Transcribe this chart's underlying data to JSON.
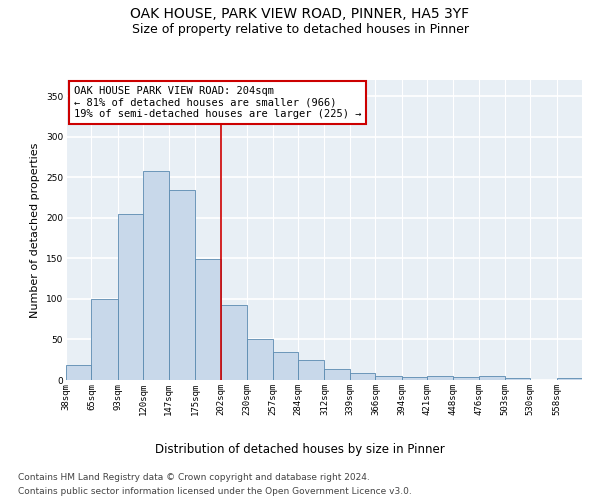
{
  "title": "OAK HOUSE, PARK VIEW ROAD, PINNER, HA5 3YF",
  "subtitle": "Size of property relative to detached houses in Pinner",
  "xlabel": "Distribution of detached houses by size in Pinner",
  "ylabel": "Number of detached properties",
  "footnote1": "Contains HM Land Registry data © Crown copyright and database right 2024.",
  "footnote2": "Contains public sector information licensed under the Open Government Licence v3.0.",
  "bar_color": "#c8d8ea",
  "bar_edge_color": "#5a8ab0",
  "vline_x": 202,
  "vline_color": "#cc0000",
  "annotation_title": "OAK HOUSE PARK VIEW ROAD: 204sqm",
  "annotation_line1": "← 81% of detached houses are smaller (966)",
  "annotation_line2": "19% of semi-detached houses are larger (225) →",
  "annotation_box_edgecolor": "#cc0000",
  "bin_edges": [
    38,
    65,
    93,
    120,
    147,
    175,
    202,
    230,
    257,
    284,
    312,
    339,
    366,
    394,
    421,
    448,
    476,
    503,
    530,
    558,
    585
  ],
  "bin_heights": [
    18,
    100,
    205,
    258,
    234,
    149,
    93,
    51,
    35,
    25,
    13,
    9,
    5,
    4,
    5,
    4,
    5,
    2,
    0,
    2
  ],
  "ylim": [
    0,
    370
  ],
  "yticks": [
    0,
    50,
    100,
    150,
    200,
    250,
    300,
    350
  ],
  "bg_color": "#e8eff5",
  "grid_color": "#ffffff",
  "title_fontsize": 10,
  "subtitle_fontsize": 9,
  "xlabel_fontsize": 8.5,
  "ylabel_fontsize": 8,
  "tick_fontsize": 6.5,
  "footnote_fontsize": 6.5,
  "annot_fontsize": 7.5
}
